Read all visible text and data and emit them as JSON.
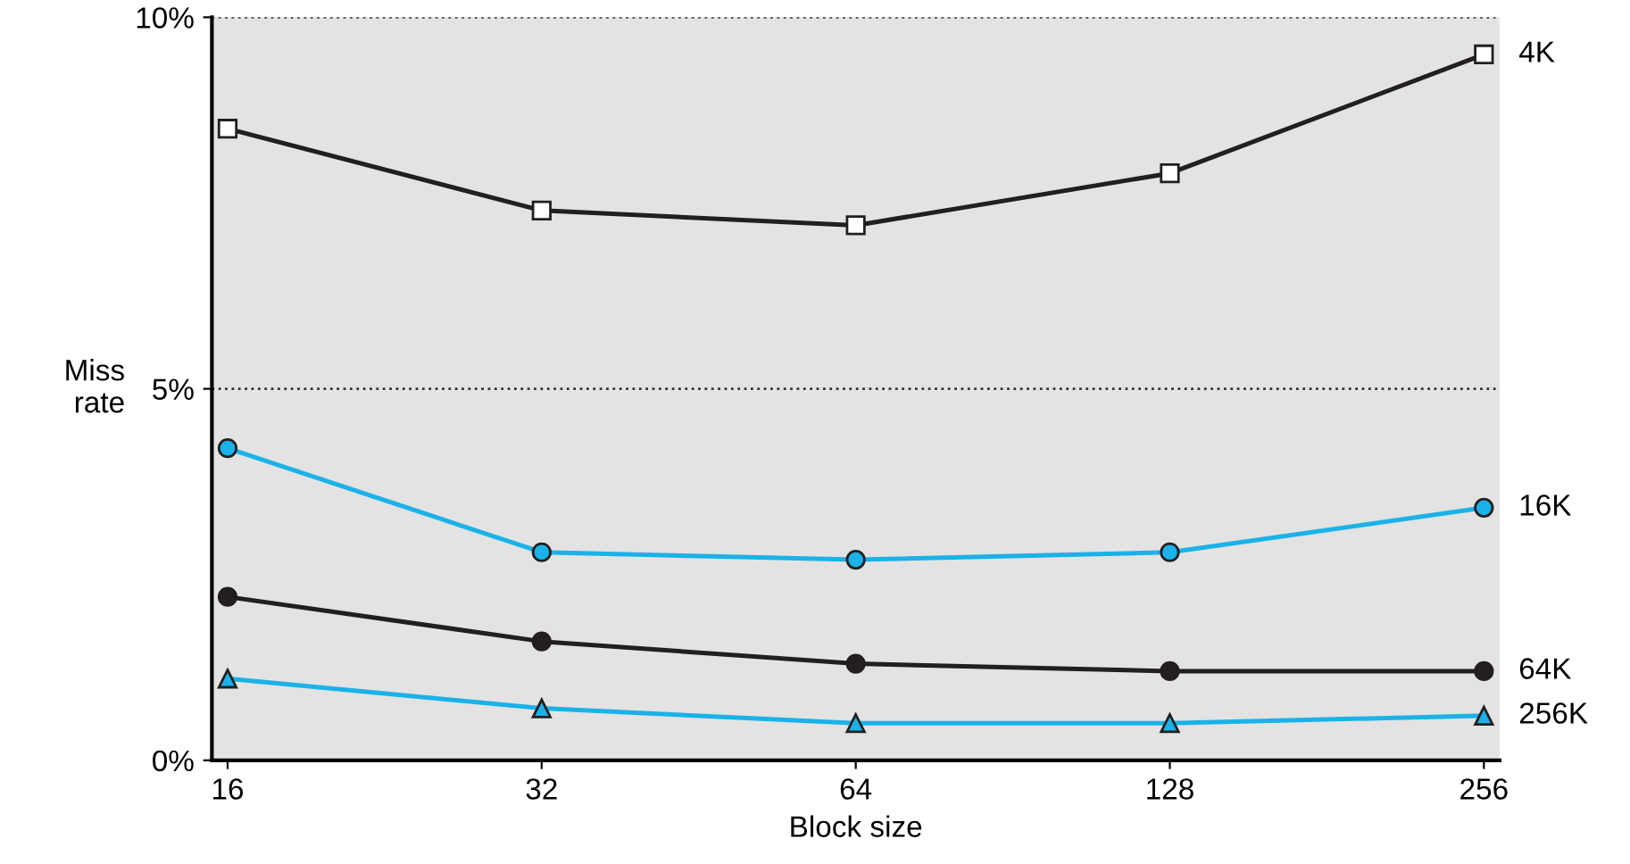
{
  "chart_data": {
    "type": "line",
    "xlabel": "Block size",
    "ylabel": "Miss\nrate",
    "categories": [
      "16",
      "32",
      "64",
      "128",
      "256"
    ],
    "series": [
      {
        "name": "4K",
        "color": "#231f20",
        "marker": "square",
        "values": [
          8.5,
          7.4,
          7.2,
          7.9,
          9.5
        ]
      },
      {
        "name": "16K",
        "color": "#1ab2e8",
        "marker": "circle",
        "values": [
          4.2,
          2.8,
          2.7,
          2.8,
          3.4
        ]
      },
      {
        "name": "64K",
        "color": "#231f20",
        "marker": "circle",
        "values": [
          2.2,
          1.6,
          1.3,
          1.2,
          1.2
        ]
      },
      {
        "name": "256K",
        "color": "#1ab2e8",
        "marker": "triangle",
        "values": [
          1.1,
          0.7,
          0.5,
          0.5,
          0.6
        ]
      }
    ],
    "ylim": [
      0,
      10
    ],
    "yticks": [
      {
        "value": 0,
        "label": "0%"
      },
      {
        "value": 5,
        "label": "5%"
      },
      {
        "value": 10,
        "label": "10%"
      }
    ],
    "grid": "y",
    "legend": false
  }
}
